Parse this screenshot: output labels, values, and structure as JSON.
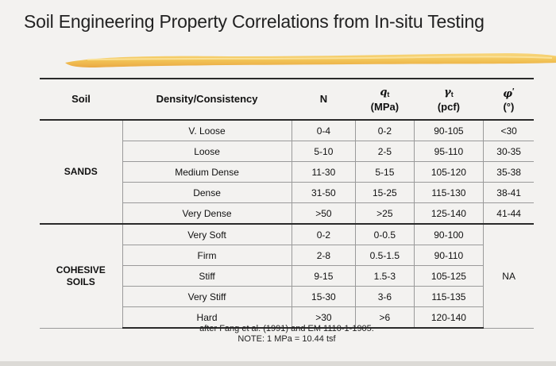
{
  "title": "Soil Engineering Property Correlations from In-situ Testing",
  "colors": {
    "highlight_stroke": "#f2c14e",
    "highlight_edge": "#e9a43b",
    "rule": "#2a2a2a",
    "grid": "#9a9a9a"
  },
  "headers": {
    "soil": "Soil",
    "density": "Density/Consistency",
    "n": "N",
    "qt_symbol": "q",
    "qt_sub": "t",
    "qt_unit": "(MPa)",
    "gamma_symbol": "γ",
    "gamma_sub": "t",
    "gamma_unit": "(pcf)",
    "phi_symbol": "φ",
    "phi_sup": "′",
    "phi_unit": "(°)"
  },
  "groups": {
    "sands": "SANDS",
    "cohesive_line1": "COHESIVE",
    "cohesive_line2": "SOILS"
  },
  "sands_rows": [
    {
      "density": "V. Loose",
      "n": "0-4",
      "qt": "0-2",
      "gamma": "90-105",
      "phi": "<30"
    },
    {
      "density": "Loose",
      "n": "5-10",
      "qt": "2-5",
      "gamma": "95-110",
      "phi": "30-35"
    },
    {
      "density": "Medium Dense",
      "n": "11-30",
      "qt": "5-15",
      "gamma": "105-120",
      "phi": "35-38"
    },
    {
      "density": "Dense",
      "n": "31-50",
      "qt": "15-25",
      "gamma": "115-130",
      "phi": "38-41"
    },
    {
      "density": "Very Dense",
      "n": ">50",
      "qt": ">25",
      "gamma": "125-140",
      "phi": "41-44"
    }
  ],
  "cohesive_rows": [
    {
      "density": "Very Soft",
      "n": "0-2",
      "qt": "0-0.5",
      "gamma": "90-100"
    },
    {
      "density": "Firm",
      "n": "2-8",
      "qt": "0.5-1.5",
      "gamma": "90-110"
    },
    {
      "density": "Stiff",
      "n": "9-15",
      "qt": "1.5-3",
      "gamma": "105-125"
    },
    {
      "density": "Very Stiff",
      "n": "15-30",
      "qt": "3-6",
      "gamma": "115-135"
    },
    {
      "density": "Hard",
      "n": ">30",
      "qt": ">6",
      "gamma": "120-140"
    }
  ],
  "cohesive_phi": "NA",
  "footnote": {
    "line1": "after Fang et al. (1991) and EM 1110-1-1905.",
    "line2": "NOTE: 1 MPa = 10.44 tsf"
  }
}
